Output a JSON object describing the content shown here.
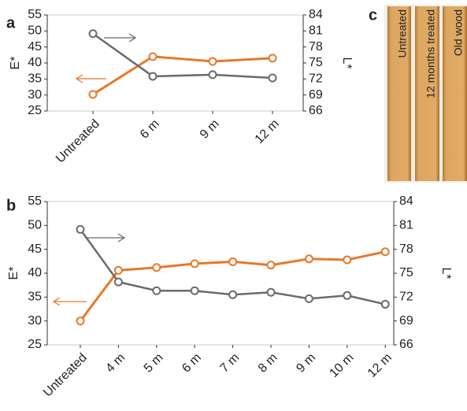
{
  "chart_data": [
    {
      "type": "line",
      "panel_label": "a",
      "y_label": "E*",
      "y2_label": "L*",
      "categories": [
        "Untreated",
        "6 m",
        "9 m",
        "12 m"
      ],
      "series": [
        {
          "color": "#e8782a",
          "values": [
            30.2,
            42,
            40.5,
            41.5
          ]
        },
        {
          "color": "#6b6b6b",
          "axis": "y2",
          "values": [
            80.5,
            72.5,
            72.8,
            72.2
          ]
        }
      ],
      "ylim": [
        25,
        55
      ],
      "yticks": [
        25,
        30,
        35,
        40,
        45,
        50,
        55
      ],
      "y2lim": [
        66,
        84
      ],
      "y2ticks": [
        66,
        69,
        72,
        75,
        78,
        81,
        84
      ]
    },
    {
      "type": "line",
      "panel_label": "b",
      "y_label": "E*",
      "y2_label": "L*",
      "categories": [
        "Untreated",
        "4 m",
        "5 m",
        "6 m",
        "7 m",
        "8 m",
        "9 m",
        "10 m",
        "12 m"
      ],
      "series": [
        {
          "color": "#e8782a",
          "values": [
            30,
            40.6,
            41.2,
            42,
            42.4,
            41.7,
            43,
            42.8,
            44.5
          ]
        },
        {
          "color": "#6b6b6b",
          "axis": "y2",
          "values": [
            80.5,
            73.9,
            72.8,
            72.8,
            72.3,
            72.6,
            71.8,
            72.2,
            71.1
          ]
        }
      ],
      "ylim": [
        25,
        55
      ],
      "yticks": [
        25,
        30,
        35,
        40,
        45,
        50,
        55
      ],
      "y2lim": [
        66,
        84
      ],
      "y2ticks": [
        66,
        69,
        72,
        75,
        78,
        81,
        84
      ]
    }
  ],
  "photo": {
    "panel_label": "c",
    "labels": [
      "Untreated",
      "12 months treated",
      "Old wood"
    ]
  }
}
